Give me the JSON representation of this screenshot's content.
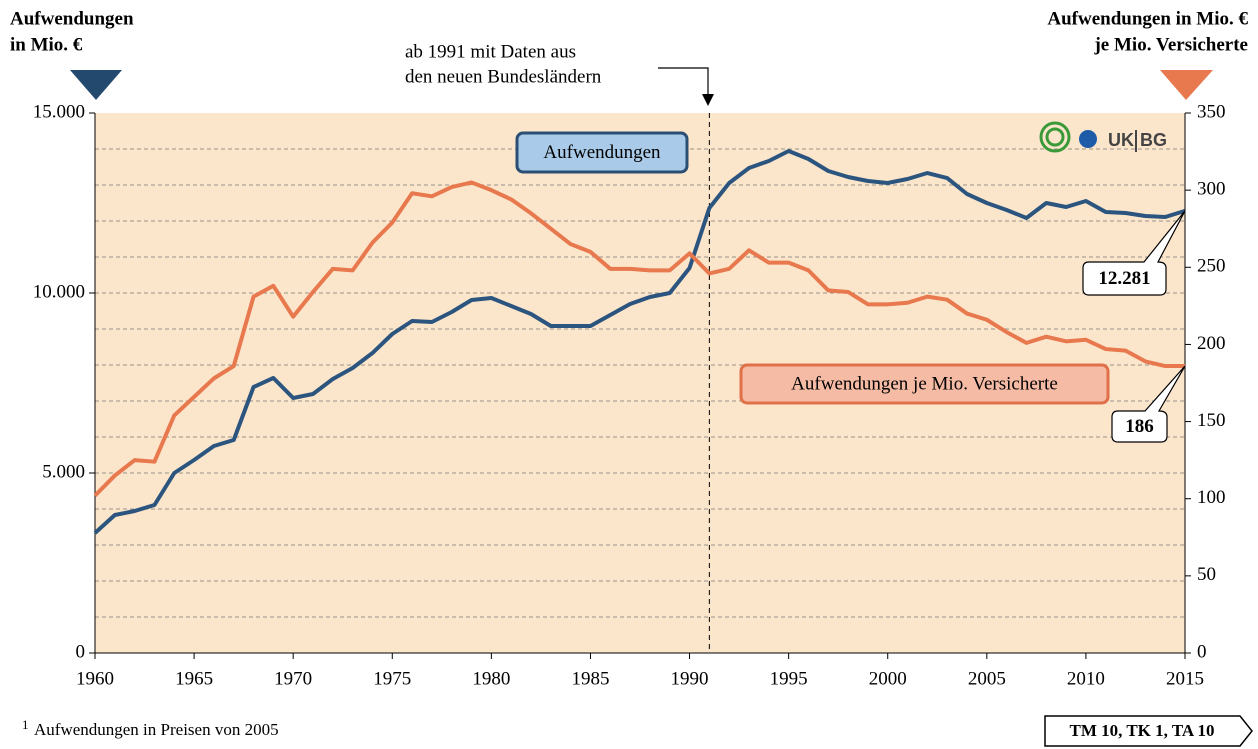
{
  "chart_data": {
    "type": "line",
    "y_title": [
      "Aufwendungen",
      "in Mio. €"
    ],
    "y2_title": [
      "Aufwendungen in Mio. €",
      "je Mio. Versicherte"
    ],
    "annotation": [
      "ab 1991 mit Daten aus",
      "den neuen Bundesländern"
    ],
    "vline": 1991,
    "x": [
      1960,
      1961,
      1962,
      1963,
      1964,
      1965,
      1966,
      1967,
      1968,
      1969,
      1970,
      1971,
      1972,
      1973,
      1974,
      1975,
      1976,
      1977,
      1978,
      1979,
      1980,
      1981,
      1982,
      1983,
      1984,
      1985,
      1986,
      1987,
      1988,
      1989,
      1990,
      1991,
      1992,
      1993,
      1994,
      1995,
      1996,
      1997,
      1998,
      1999,
      2000,
      2001,
      2002,
      2003,
      2004,
      2005,
      2006,
      2007,
      2008,
      2009,
      2010,
      2011,
      2012,
      2013,
      2014,
      2015
    ],
    "series": [
      {
        "name": "Aufwendungen",
        "color": "#2b557f",
        "axis": "y",
        "values": [
          3333,
          3833,
          3944,
          4111,
          5000,
          5361,
          5750,
          5917,
          7389,
          7639,
          7083,
          7194,
          7611,
          7917,
          8333,
          8861,
          9222,
          9194,
          9472,
          9806,
          9861,
          9639,
          9417,
          9083,
          9083,
          9083,
          9389,
          9694,
          9889,
          10000,
          10694,
          12361,
          13056,
          13472,
          13667,
          13944,
          13722,
          13389,
          13222,
          13111,
          13056,
          13167,
          13333,
          13194,
          12750,
          12500,
          12306,
          12083,
          12500,
          12389,
          12556,
          12250,
          12222,
          12139,
          12111,
          12281
        ],
        "value_labels": [
          null,
          null,
          null,
          null,
          null,
          null,
          null,
          null,
          null,
          null,
          null,
          null,
          null,
          null,
          null,
          null,
          null,
          null,
          null,
          null,
          null,
          null,
          null,
          null,
          null,
          null,
          null,
          null,
          null,
          null,
          null,
          null,
          null,
          null,
          null,
          null,
          null,
          null,
          null,
          null,
          null,
          null,
          null,
          null,
          null,
          null,
          null,
          null,
          null,
          null,
          null,
          null,
          null,
          null,
          null,
          "12.281"
        ]
      },
      {
        "name": "Aufwendungen je Mio. Versicherte",
        "color": "#e8784e",
        "axis": "y2",
        "values": [
          102,
          115,
          125,
          124,
          154,
          166,
          178,
          186,
          231,
          238,
          218,
          234,
          249,
          248,
          266,
          279,
          298,
          296,
          302,
          305,
          300,
          294,
          285,
          275,
          265,
          260,
          249,
          249,
          248,
          248,
          259,
          246,
          249,
          261,
          253,
          253,
          248,
          235,
          234,
          226,
          226,
          227,
          231,
          229,
          220,
          216,
          208,
          201,
          205,
          202,
          203,
          197,
          196,
          189,
          186,
          186
        ],
        "value_labels": [
          null,
          null,
          null,
          null,
          null,
          null,
          null,
          null,
          null,
          null,
          null,
          null,
          null,
          null,
          null,
          null,
          null,
          null,
          null,
          null,
          null,
          null,
          null,
          null,
          null,
          null,
          null,
          null,
          null,
          null,
          null,
          null,
          null,
          null,
          null,
          null,
          null,
          null,
          null,
          null,
          null,
          null,
          null,
          null,
          null,
          null,
          null,
          null,
          null,
          null,
          null,
          null,
          null,
          null,
          null,
          "186"
        ]
      }
    ],
    "xlim": [
      1960,
      2015
    ],
    "xticks": [
      1960,
      1965,
      1970,
      1975,
      1980,
      1985,
      1990,
      1995,
      2000,
      2005,
      2010,
      2015
    ],
    "ylim": [
      0,
      15000
    ],
    "yticks": [
      0,
      {
        "value": 5000,
        "label": "5.000"
      },
      {
        "value": 10000,
        "label": "10.000"
      },
      {
        "value": 15000,
        "label": "15.000"
      }
    ],
    "ygrid": [
      1000,
      2000,
      3000,
      4000,
      5000,
      6000,
      7000,
      8000,
      9000,
      10000,
      11000,
      12000,
      13000,
      14000
    ],
    "y2lim": [
      0,
      350
    ],
    "y2ticks": [
      0,
      50,
      100,
      150,
      200,
      250,
      300,
      350
    ],
    "logo_text": [
      "UK",
      "BG"
    ],
    "footnote_mark": "1",
    "footnote": "Aufwendungen in Preisen von 2005",
    "source_box": "TM 10, TK 1, TA 10"
  }
}
